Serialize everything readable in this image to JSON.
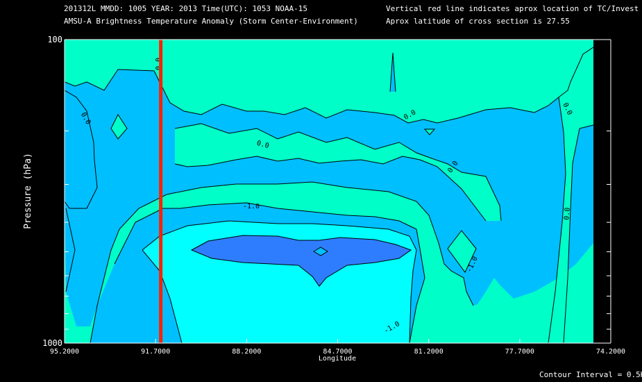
{
  "header": {
    "line1": "201312L  MMDD: 1005 YEAR: 2013 Time(UTC): 1053 NOAA-15",
    "line2": "AMSU-A Brightness Temperature Anomaly (Storm Center-Environment)",
    "note1": "Vertical red line indicates aprox location of TC/Invest",
    "note2": "Aprox latitude of cross section is 27.55"
  },
  "footer": {
    "contour_interval": "Contour Interval = 0.5K"
  },
  "colors": {
    "background": "#000000",
    "cyan": "#00ffff",
    "sky": "#00bfff",
    "aqua": "#00ffc8",
    "deep": "#2e7dff",
    "tc_line": "#ff2200",
    "contour": "#000000"
  },
  "chart_data": {
    "type": "contour",
    "xlabel": "Longitude",
    "ylabel": "Pressure (hPa)",
    "x_ticks": [
      "95.2000",
      "91.7000",
      "88.2000",
      "84.7000",
      "81.2000",
      "77.7000",
      "74.2000"
    ],
    "x_tick_values": [
      95.2,
      91.7,
      88.2,
      84.7,
      81.2,
      77.7,
      74.2
    ],
    "y_ticks": [
      "100",
      "1000"
    ],
    "y_tick_values": [
      100,
      1000
    ],
    "xlim": [
      95.2,
      74.2
    ],
    "ylim": [
      1000,
      100
    ],
    "y_scale": "log",
    "tc_longitude": 91.5,
    "data_extent_lon": [
      95.2,
      75.2
    ],
    "contour_labels": [
      "0.0",
      "0.0",
      "0.0",
      "0.0",
      "0.0",
      "0.0",
      "0.0",
      "-1.0",
      "-1.0",
      "-1.0",
      "-1.0"
    ]
  }
}
